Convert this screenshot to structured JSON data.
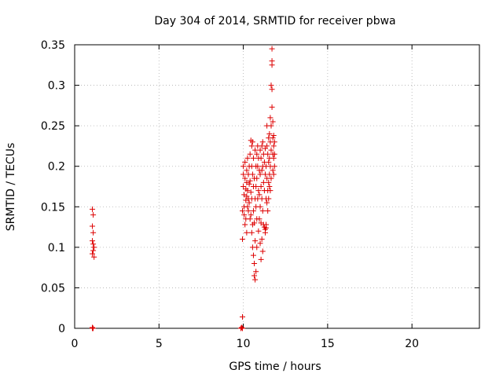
{
  "chart_data": {
    "type": "scatter",
    "title": "Day 304 of 2014, SRMTID for receiver pbwa",
    "xlabel": "GPS time / hours",
    "ylabel": "SRMTID / TECUs",
    "xlim": [
      0,
      24
    ],
    "ylim": [
      0,
      0.35
    ],
    "xticks": [
      0,
      5,
      10,
      15,
      20
    ],
    "xtick_labels": [
      "0",
      "5",
      "10",
      "15",
      "20"
    ],
    "yticks": [
      0,
      0.05,
      0.1,
      0.15,
      0.2,
      0.25,
      0.3,
      0.35
    ],
    "ytick_labels": [
      "0",
      "0.05",
      "0.1",
      "0.15",
      "0.2",
      "0.25",
      "0.3",
      "0.35"
    ],
    "grid": true,
    "marker": "plus",
    "color": "#dd0000",
    "series": [
      {
        "name": "SRMTID",
        "points": [
          [
            1.05,
            0.0
          ],
          [
            1.05,
            0.001
          ],
          [
            1.1,
            0.0
          ],
          [
            1.05,
            0.147
          ],
          [
            1.1,
            0.14
          ],
          [
            1.05,
            0.126
          ],
          [
            1.1,
            0.118
          ],
          [
            1.05,
            0.108
          ],
          [
            1.1,
            0.104
          ],
          [
            1.15,
            0.1
          ],
          [
            1.1,
            0.096
          ],
          [
            1.05,
            0.092
          ],
          [
            1.15,
            0.088
          ],
          [
            9.85,
            0.0
          ],
          [
            9.9,
            0.001
          ],
          [
            9.95,
            0.0
          ],
          [
            9.95,
            0.014
          ],
          [
            9.95,
            0.11
          ],
          [
            9.95,
            0.145
          ],
          [
            10.0,
            0.2
          ],
          [
            10.0,
            0.19
          ],
          [
            10.0,
            0.175
          ],
          [
            10.05,
            0.165
          ],
          [
            10.05,
            0.15
          ],
          [
            10.05,
            0.14
          ],
          [
            10.1,
            0.205
          ],
          [
            10.1,
            0.185
          ],
          [
            10.1,
            0.128
          ],
          [
            10.15,
            0.172
          ],
          [
            10.15,
            0.158
          ],
          [
            10.15,
            0.135
          ],
          [
            10.2,
            0.195
          ],
          [
            10.2,
            0.18
          ],
          [
            10.2,
            0.163
          ],
          [
            10.2,
            0.118
          ],
          [
            10.25,
            0.21
          ],
          [
            10.25,
            0.17
          ],
          [
            10.25,
            0.15
          ],
          [
            10.3,
            0.19
          ],
          [
            10.3,
            0.16
          ],
          [
            10.3,
            0.145
          ],
          [
            10.35,
            0.2
          ],
          [
            10.35,
            0.178
          ],
          [
            10.35,
            0.155
          ],
          [
            10.4,
            0.215
          ],
          [
            10.4,
            0.182
          ],
          [
            10.4,
            0.135
          ],
          [
            10.45,
            0.232
          ],
          [
            10.45,
            0.168
          ],
          [
            10.45,
            0.14
          ],
          [
            10.5,
            0.225
          ],
          [
            10.5,
            0.2
          ],
          [
            10.5,
            0.16
          ],
          [
            10.5,
            0.118
          ],
          [
            10.55,
            0.23
          ],
          [
            10.55,
            0.19
          ],
          [
            10.55,
            0.128
          ],
          [
            10.55,
            0.1
          ],
          [
            10.6,
            0.21
          ],
          [
            10.6,
            0.175
          ],
          [
            10.6,
            0.145
          ],
          [
            10.6,
            0.09
          ],
          [
            10.65,
            0.185
          ],
          [
            10.65,
            0.13
          ],
          [
            10.65,
            0.08
          ],
          [
            10.65,
            0.065
          ],
          [
            10.7,
            0.22
          ],
          [
            10.7,
            0.16
          ],
          [
            10.7,
            0.108
          ],
          [
            10.7,
            0.06
          ],
          [
            10.75,
            0.2
          ],
          [
            10.75,
            0.175
          ],
          [
            10.75,
            0.15
          ],
          [
            10.75,
            0.07
          ],
          [
            10.8,
            0.215
          ],
          [
            10.8,
            0.185
          ],
          [
            10.8,
            0.135
          ],
          [
            10.8,
            0.1
          ],
          [
            10.85,
            0.225
          ],
          [
            10.85,
            0.2
          ],
          [
            10.85,
            0.16
          ],
          [
            10.9,
            0.21
          ],
          [
            10.9,
            0.17
          ],
          [
            10.9,
            0.12
          ],
          [
            10.95,
            0.195
          ],
          [
            10.95,
            0.165
          ],
          [
            10.95,
            0.135
          ],
          [
            11.0,
            0.22
          ],
          [
            11.0,
            0.19
          ],
          [
            11.0,
            0.15
          ],
          [
            11.0,
            0.105
          ],
          [
            11.05,
            0.21
          ],
          [
            11.05,
            0.175
          ],
          [
            11.05,
            0.13
          ],
          [
            11.05,
            0.085
          ],
          [
            11.1,
            0.225
          ],
          [
            11.1,
            0.195
          ],
          [
            11.1,
            0.16
          ],
          [
            11.1,
            0.11
          ],
          [
            11.15,
            0.23
          ],
          [
            11.15,
            0.2
          ],
          [
            11.15,
            0.145
          ],
          [
            11.15,
            0.095
          ],
          [
            11.2,
            0.215
          ],
          [
            11.2,
            0.18
          ],
          [
            11.2,
            0.128
          ],
          [
            11.25,
            0.205
          ],
          [
            11.25,
            0.17
          ],
          [
            11.25,
            0.125
          ],
          [
            11.3,
            0.222
          ],
          [
            11.3,
            0.19
          ],
          [
            11.3,
            0.122
          ],
          [
            11.3,
            0.118
          ],
          [
            11.35,
            0.2
          ],
          [
            11.35,
            0.16
          ],
          [
            11.35,
            0.128
          ],
          [
            11.35,
            0.124
          ],
          [
            11.4,
            0.225
          ],
          [
            11.4,
            0.185
          ],
          [
            11.4,
            0.155
          ],
          [
            11.4,
            0.25
          ],
          [
            11.45,
            0.215
          ],
          [
            11.45,
            0.17
          ],
          [
            11.45,
            0.145
          ],
          [
            11.5,
            0.235
          ],
          [
            11.5,
            0.205
          ],
          [
            11.5,
            0.18
          ],
          [
            11.5,
            0.16
          ],
          [
            11.55,
            0.24
          ],
          [
            11.55,
            0.21
          ],
          [
            11.55,
            0.175
          ],
          [
            11.55,
            0.19
          ],
          [
            11.6,
            0.23
          ],
          [
            11.6,
            0.2
          ],
          [
            11.6,
            0.17
          ],
          [
            11.6,
            0.26
          ],
          [
            11.65,
            0.25
          ],
          [
            11.65,
            0.22
          ],
          [
            11.65,
            0.185
          ],
          [
            11.65,
            0.3
          ],
          [
            11.7,
            0.33
          ],
          [
            11.7,
            0.345
          ],
          [
            11.7,
            0.325
          ],
          [
            11.7,
            0.295
          ],
          [
            11.7,
            0.273
          ],
          [
            11.75,
            0.255
          ],
          [
            11.75,
            0.235
          ],
          [
            11.75,
            0.215
          ],
          [
            11.75,
            0.195
          ],
          [
            11.8,
            0.238
          ],
          [
            11.8,
            0.225
          ],
          [
            11.8,
            0.21
          ],
          [
            11.8,
            0.19
          ],
          [
            11.85,
            0.23
          ],
          [
            11.85,
            0.215
          ],
          [
            11.85,
            0.2
          ]
        ]
      }
    ]
  }
}
